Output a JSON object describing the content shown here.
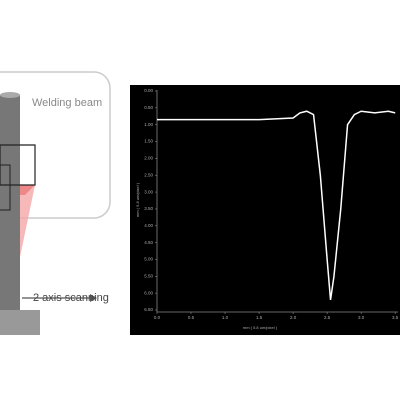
{
  "diagram": {
    "beam_label": "Welding beam",
    "scan_label": "2 axis scanning"
  },
  "chart_data": {
    "type": "line",
    "xlabel": "mm ( 5.8 um/pixel )",
    "ylabel": "mm ( 5.8 um/pixel )",
    "x": [
      0,
      0.5,
      1.0,
      1.5,
      2.0,
      2.1,
      2.2,
      2.3,
      2.4,
      2.5,
      2.55,
      2.6,
      2.7,
      2.8,
      2.9,
      3.0,
      3.2,
      3.4,
      3.5
    ],
    "series": [
      {
        "name": "profile",
        "color": "#ffffff",
        "values": [
          0.85,
          0.85,
          0.85,
          0.85,
          0.8,
          0.65,
          0.6,
          0.7,
          2.5,
          5.0,
          6.2,
          5.5,
          3.5,
          1.0,
          0.7,
          0.6,
          0.65,
          0.6,
          0.65
        ]
      }
    ],
    "xlim": [
      0,
      3.6
    ],
    "ylim": [
      0,
      6.5
    ],
    "xticks": [
      {
        "value": 0,
        "label": "0.0"
      },
      0.5,
      {
        "value": 1,
        "label": "1.0"
      },
      1.5,
      {
        "value": 2,
        "label": "2.0"
      },
      2.5,
      {
        "value": 3,
        "label": "3.0"
      },
      3.5
    ],
    "yticks": [
      {
        "value": 0,
        "label": "0.00"
      },
      {
        "value": 0.5,
        "label": "0.50"
      },
      {
        "value": 1,
        "label": "1.00"
      },
      {
        "value": 1.5,
        "label": "1.50"
      },
      {
        "value": 2,
        "label": "2.00"
      },
      {
        "value": 2.5,
        "label": "2.50"
      },
      {
        "value": 3,
        "label": "3.00"
      },
      {
        "value": 3.5,
        "label": "3.50"
      },
      {
        "value": 4,
        "label": "4.00"
      },
      {
        "value": 4.5,
        "label": "4.50"
      },
      {
        "value": 5,
        "label": "5.00"
      },
      {
        "value": 5.5,
        "label": "5.50"
      },
      {
        "value": 6,
        "label": "6.00"
      },
      {
        "value": 6.5,
        "label": "6.50"
      }
    ]
  }
}
